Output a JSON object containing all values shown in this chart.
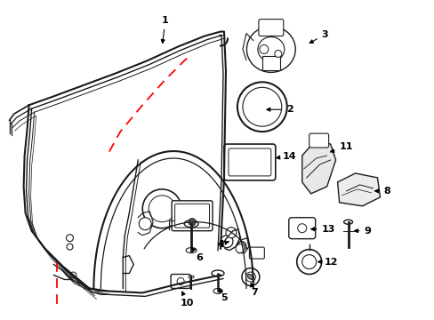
{
  "bg_color": "#ffffff",
  "lc": "#1a1a1a",
  "rc": "#ff0000",
  "label_color": "#000000",
  "figsize": [
    4.89,
    3.6
  ],
  "dpi": 100
}
